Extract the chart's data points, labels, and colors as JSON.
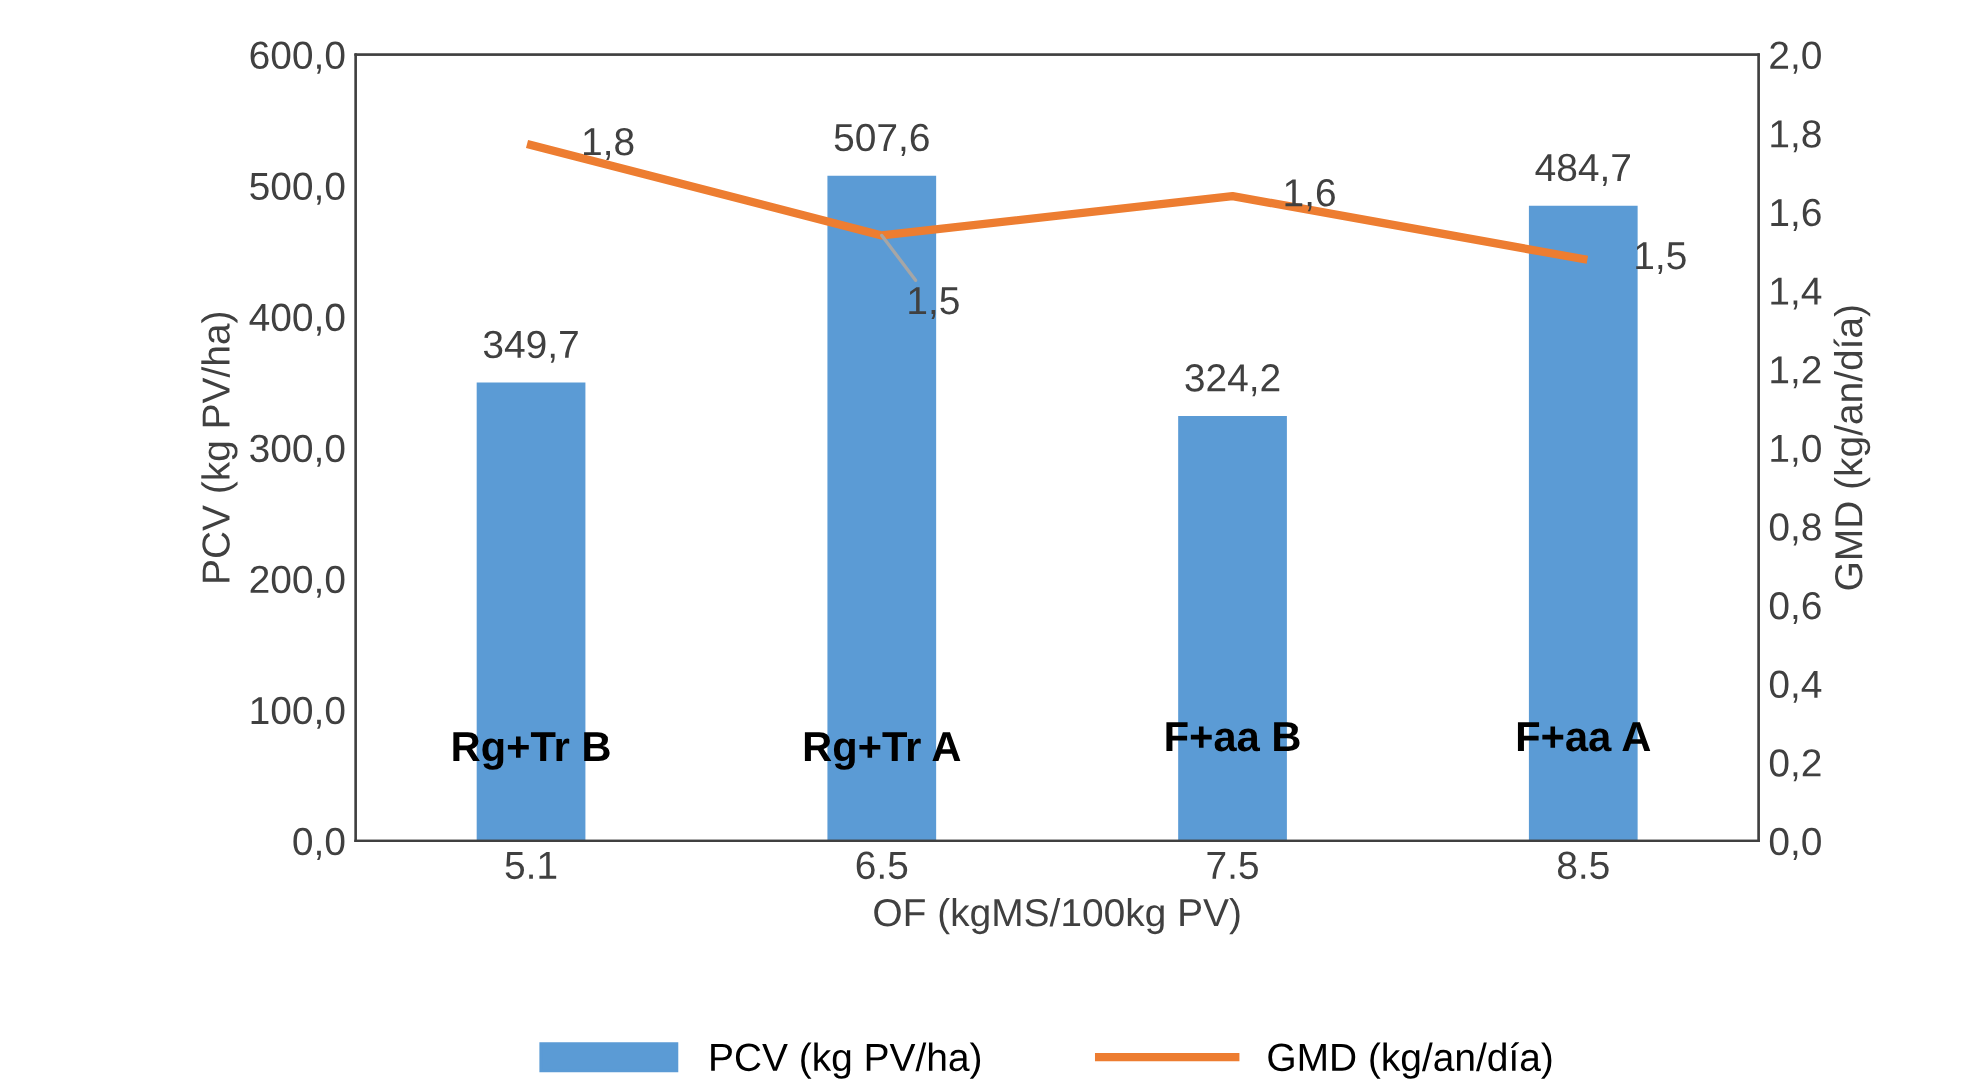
{
  "chart_data": {
    "type": "bar",
    "xlabel": "OF (kgMS/100kg PV)",
    "ylabel": "PCV (kg PV/ha)",
    "y2label": "GMD (kg/an/día)",
    "categories": [
      "5.1",
      "6.5",
      "7.5",
      "8.5"
    ],
    "series": [
      {
        "name": "PCV (kg PV/ha)",
        "color": "#5b9bd5",
        "values": [
          349.7,
          507.6,
          324.2,
          484.7
        ],
        "value_labels": [
          "349,7",
          "507,6",
          "324,2",
          "484,7"
        ]
      },
      {
        "name": "GMD (kg/an/día)",
        "type": "line",
        "axis": "y2",
        "color": "#ed7d31",
        "values": [
          1.77,
          1.54,
          1.64,
          1.48
        ],
        "value_labels": [
          "1,8",
          "1,5",
          "1,6",
          "1,5"
        ]
      }
    ],
    "annotations": [
      "Rg+Tr B",
      "Rg+Tr A",
      "F+aa B",
      "F+aa A"
    ],
    "ylim": [
      0,
      600
    ],
    "yticks": [
      {
        "value": 0,
        "label": "0,0"
      },
      {
        "value": 100,
        "label": "100,0"
      },
      {
        "value": 200,
        "label": "200,0"
      },
      {
        "value": 300,
        "label": "300,0"
      },
      {
        "value": 400,
        "label": "400,0"
      },
      {
        "value": 500,
        "label": "500,0"
      },
      {
        "value": 600,
        "label": "600,0"
      }
    ],
    "y2lim": [
      0,
      2
    ],
    "y2ticks": [
      {
        "value": 0,
        "label": "0,0"
      },
      {
        "value": 0.2,
        "label": "0,2"
      },
      {
        "value": 0.4,
        "label": "0,4"
      },
      {
        "value": 0.6,
        "label": "0,6"
      },
      {
        "value": 0.8,
        "label": "0,8"
      },
      {
        "value": 1.0,
        "label": "1,0"
      },
      {
        "value": 1.2,
        "label": "1,2"
      },
      {
        "value": 1.4,
        "label": "1,4"
      },
      {
        "value": 1.6,
        "label": "1,6"
      },
      {
        "value": 1.8,
        "label": "1,8"
      },
      {
        "value": 2.0,
        "label": "2,0"
      }
    ],
    "grid": false,
    "legend": "bottom",
    "marker": "none",
    "line_style": "solid"
  }
}
